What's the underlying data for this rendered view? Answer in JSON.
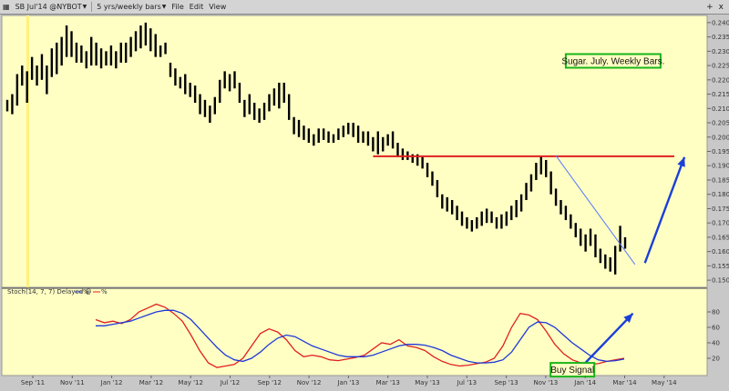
{
  "window": {
    "symbol_label": "SB Jul'14 @NYBOT",
    "period_label": "5 yrs/weekly bars",
    "menu": [
      "File",
      "Edit",
      "View"
    ],
    "controls": [
      "+",
      "x"
    ]
  },
  "chart_data": [
    {
      "type": "ohlc",
      "title": "",
      "xlabel": "",
      "ylabel": "",
      "x_ticks": [
        "Sep '11",
        "Nov '11",
        "Jan '12",
        "Mar '12",
        "May '12",
        "Jul '12",
        "Sep '12",
        "Nov '12",
        "Jan '13",
        "Mar '13",
        "May '13",
        "Jul '13",
        "Sep '13",
        "Nov '13",
        "Jan '14",
        "Mar '14",
        "May '14"
      ],
      "y_ticks": [
        "0.1500",
        "0.1550",
        "0.1600",
        "0.1650",
        "0.1700",
        "0.1750",
        "0.1800",
        "0.1850",
        "0.1900",
        "0.1950",
        "0.2000",
        "0.2050",
        "0.2100",
        "0.2150",
        "0.2200",
        "0.2250",
        "0.2300",
        "0.2350",
        "0.2400"
      ],
      "ylim": [
        0.1475,
        0.2425
      ],
      "grid": false,
      "highlight_marker": "Sep '11",
      "series": [
        {
          "values": [
            {
              "h": 0.213,
              "l": 0.209
            },
            {
              "h": 0.215,
              "l": 0.208
            },
            {
              "h": 0.222,
              "l": 0.211
            },
            {
              "h": 0.225,
              "l": 0.218
            },
            {
              "h": 0.223,
              "l": 0.212
            },
            {
              "h": 0.228,
              "l": 0.22
            },
            {
              "h": 0.225,
              "l": 0.218
            },
            {
              "h": 0.229,
              "l": 0.22
            },
            {
              "h": 0.225,
              "l": 0.215
            },
            {
              "h": 0.231,
              "l": 0.221
            },
            {
              "h": 0.233,
              "l": 0.222
            },
            {
              "h": 0.235,
              "l": 0.225
            },
            {
              "h": 0.239,
              "l": 0.228
            },
            {
              "h": 0.237,
              "l": 0.228
            },
            {
              "h": 0.233,
              "l": 0.226
            },
            {
              "h": 0.232,
              "l": 0.226
            },
            {
              "h": 0.23,
              "l": 0.224
            },
            {
              "h": 0.235,
              "l": 0.225
            },
            {
              "h": 0.233,
              "l": 0.225
            },
            {
              "h": 0.231,
              "l": 0.224
            },
            {
              "h": 0.23,
              "l": 0.225
            },
            {
              "h": 0.232,
              "l": 0.225
            },
            {
              "h": 0.23,
              "l": 0.224
            },
            {
              "h": 0.233,
              "l": 0.226
            },
            {
              "h": 0.233,
              "l": 0.226
            },
            {
              "h": 0.235,
              "l": 0.228
            },
            {
              "h": 0.237,
              "l": 0.23
            },
            {
              "h": 0.239,
              "l": 0.231
            },
            {
              "h": 0.24,
              "l": 0.232
            },
            {
              "h": 0.238,
              "l": 0.23
            },
            {
              "h": 0.236,
              "l": 0.228
            },
            {
              "h": 0.232,
              "l": 0.228
            },
            {
              "h": 0.233,
              "l": 0.229
            },
            {
              "h": 0.226,
              "l": 0.221
            },
            {
              "h": 0.224,
              "l": 0.218
            },
            {
              "h": 0.221,
              "l": 0.217
            },
            {
              "h": 0.222,
              "l": 0.215
            },
            {
              "h": 0.219,
              "l": 0.214
            },
            {
              "h": 0.218,
              "l": 0.212
            },
            {
              "h": 0.215,
              "l": 0.208
            },
            {
              "h": 0.213,
              "l": 0.207
            },
            {
              "h": 0.211,
              "l": 0.205
            },
            {
              "h": 0.214,
              "l": 0.208
            },
            {
              "h": 0.22,
              "l": 0.212
            },
            {
              "h": 0.223,
              "l": 0.217
            },
            {
              "h": 0.222,
              "l": 0.216
            },
            {
              "h": 0.223,
              "l": 0.217
            },
            {
              "h": 0.219,
              "l": 0.212
            },
            {
              "h": 0.213,
              "l": 0.207
            },
            {
              "h": 0.215,
              "l": 0.208
            },
            {
              "h": 0.212,
              "l": 0.206
            },
            {
              "h": 0.21,
              "l": 0.205
            },
            {
              "h": 0.212,
              "l": 0.206
            },
            {
              "h": 0.215,
              "l": 0.209
            },
            {
              "h": 0.217,
              "l": 0.211
            },
            {
              "h": 0.219,
              "l": 0.21
            },
            {
              "h": 0.219,
              "l": 0.212
            },
            {
              "h": 0.215,
              "l": 0.206
            },
            {
              "h": 0.207,
              "l": 0.201
            },
            {
              "h": 0.206,
              "l": 0.2
            },
            {
              "h": 0.204,
              "l": 0.199
            },
            {
              "h": 0.203,
              "l": 0.198
            },
            {
              "h": 0.201,
              "l": 0.197
            },
            {
              "h": 0.203,
              "l": 0.198
            },
            {
              "h": 0.203,
              "l": 0.199
            },
            {
              "h": 0.202,
              "l": 0.198
            },
            {
              "h": 0.201,
              "l": 0.198
            },
            {
              "h": 0.203,
              "l": 0.199
            },
            {
              "h": 0.204,
              "l": 0.2
            },
            {
              "h": 0.205,
              "l": 0.201
            },
            {
              "h": 0.205,
              "l": 0.2
            },
            {
              "h": 0.204,
              "l": 0.198
            },
            {
              "h": 0.202,
              "l": 0.198
            },
            {
              "h": 0.202,
              "l": 0.197
            },
            {
              "h": 0.2,
              "l": 0.195
            },
            {
              "h": 0.202,
              "l": 0.194
            },
            {
              "h": 0.2,
              "l": 0.195
            },
            {
              "h": 0.201,
              "l": 0.197
            },
            {
              "h": 0.202,
              "l": 0.196
            },
            {
              "h": 0.198,
              "l": 0.193
            },
            {
              "h": 0.196,
              "l": 0.192
            },
            {
              "h": 0.195,
              "l": 0.192
            },
            {
              "h": 0.194,
              "l": 0.191
            },
            {
              "h": 0.194,
              "l": 0.19
            },
            {
              "h": 0.193,
              "l": 0.189
            },
            {
              "h": 0.191,
              "l": 0.186
            },
            {
              "h": 0.188,
              "l": 0.183
            },
            {
              "h": 0.185,
              "l": 0.179
            },
            {
              "h": 0.18,
              "l": 0.175
            },
            {
              "h": 0.179,
              "l": 0.174
            },
            {
              "h": 0.178,
              "l": 0.173
            },
            {
              "h": 0.176,
              "l": 0.171
            },
            {
              "h": 0.174,
              "l": 0.169
            },
            {
              "h": 0.172,
              "l": 0.168
            },
            {
              "h": 0.171,
              "l": 0.167
            },
            {
              "h": 0.172,
              "l": 0.168
            },
            {
              "h": 0.174,
              "l": 0.169
            },
            {
              "h": 0.175,
              "l": 0.17
            },
            {
              "h": 0.174,
              "l": 0.17
            },
            {
              "h": 0.172,
              "l": 0.168
            },
            {
              "h": 0.173,
              "l": 0.168
            },
            {
              "h": 0.174,
              "l": 0.169
            },
            {
              "h": 0.176,
              "l": 0.171
            },
            {
              "h": 0.178,
              "l": 0.172
            },
            {
              "h": 0.18,
              "l": 0.174
            },
            {
              "h": 0.184,
              "l": 0.178
            },
            {
              "h": 0.187,
              "l": 0.181
            },
            {
              "h": 0.191,
              "l": 0.185
            },
            {
              "h": 0.1935,
              "l": 0.187
            },
            {
              "h": 0.192,
              "l": 0.186
            },
            {
              "h": 0.188,
              "l": 0.18
            },
            {
              "h": 0.182,
              "l": 0.176
            },
            {
              "h": 0.178,
              "l": 0.173
            },
            {
              "h": 0.176,
              "l": 0.171
            },
            {
              "h": 0.173,
              "l": 0.168
            },
            {
              "h": 0.17,
              "l": 0.165
            },
            {
              "h": 0.168,
              "l": 0.162
            },
            {
              "h": 0.166,
              "l": 0.16
            },
            {
              "h": 0.168,
              "l": 0.162
            },
            {
              "h": 0.166,
              "l": 0.158
            },
            {
              "h": 0.161,
              "l": 0.156
            },
            {
              "h": 0.159,
              "l": 0.154
            },
            {
              "h": 0.158,
              "l": 0.153
            },
            {
              "h": 0.162,
              "l": 0.152
            },
            {
              "h": 0.169,
              "l": 0.16
            },
            {
              "h": 0.165,
              "l": 0.161
            }
          ]
        }
      ],
      "resistance": {
        "y": 0.1933,
        "color": "#e02020"
      },
      "trendline": {
        "from": [
          111,
          0.1935
        ],
        "to": [
          127,
          0.1555
        ],
        "color": "#5a78ff"
      },
      "projection_arrow": {
        "from": [
          129,
          0.156
        ],
        "to": [
          137,
          0.193
        ],
        "color": "#1a3fd8"
      },
      "annotations": [
        {
          "id": "title_box",
          "text": "Sugar.  July.  Weekly Bars.",
          "at": [
            113,
            0.229
          ],
          "border": "#19b519"
        }
      ]
    },
    {
      "type": "line",
      "title": "",
      "indicator_label": "Stoch",
      "params_label": "(14, 7, 7) Delayed @",
      "legend_items": [
        "%",
        "%"
      ],
      "ylim": [
        0,
        100
      ],
      "y_ticks": [
        "20",
        "40",
        "60",
        "80"
      ],
      "series": [
        {
          "color": "#e02020",
          "values": [
            70,
            66,
            68,
            65,
            70,
            80,
            85,
            90,
            86,
            78,
            68,
            50,
            30,
            14,
            8,
            10,
            12,
            20,
            36,
            52,
            58,
            54,
            44,
            30,
            22,
            24,
            22,
            18,
            17,
            19,
            21,
            24,
            32,
            40,
            38,
            44,
            36,
            34,
            30,
            22,
            16,
            12,
            10,
            11,
            13,
            15,
            20,
            36,
            60,
            78,
            76,
            70,
            55,
            38,
            26,
            18,
            14,
            12,
            13,
            16,
            18,
            20
          ]
        },
        {
          "color": "#2038d8",
          "values": [
            62,
            62,
            64,
            66,
            68,
            72,
            76,
            80,
            82,
            82,
            78,
            70,
            58,
            46,
            34,
            24,
            18,
            16,
            20,
            28,
            38,
            46,
            50,
            48,
            42,
            36,
            32,
            28,
            24,
            22,
            22,
            22,
            24,
            28,
            32,
            36,
            38,
            38,
            37,
            34,
            30,
            24,
            20,
            16,
            14,
            14,
            15,
            18,
            28,
            44,
            60,
            67,
            66,
            60,
            50,
            40,
            32,
            24,
            18,
            16,
            17,
            19
          ]
        }
      ],
      "arrow": {
        "from": [
          56,
          8
        ],
        "to": [
          62,
          78
        ],
        "color": "#1a3fd8"
      },
      "annotations": [
        {
          "id": "buy_box",
          "text": "Buy Signal",
          "at": [
            52.5,
            14
          ],
          "border": "#19b519"
        }
      ]
    }
  ]
}
